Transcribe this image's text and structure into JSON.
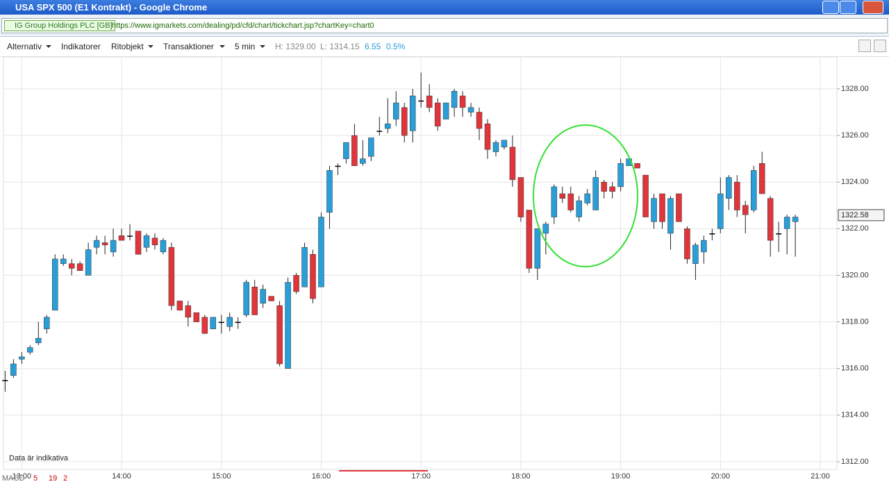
{
  "window": {
    "title": "USA SPX 500 (E1 Kontrakt) - Google Chrome"
  },
  "address_bar": {
    "site_identity": "IG Group Holdings PLC [GB]",
    "url": "https://www.igmarkets.com/dealing/pd/cfd/chart/tickchart.jsp?chartKey=chart0"
  },
  "toolbar": {
    "menus": [
      "Alternativ",
      "Indikatorer",
      "Ritobjekt",
      "Transaktioner",
      "5 min"
    ],
    "high": "H: 1329.00",
    "low": "L: 1314.15",
    "change": "6.55",
    "change_pct": "0.5%"
  },
  "footer": {
    "note": "Data är indikativa",
    "indicator": "MACD",
    "params": [
      "5",
      "19",
      "2"
    ]
  },
  "chart_data": {
    "type": "candlestick",
    "x": [
      "12:50",
      "12:55",
      "13:00",
      "13:05",
      "13:10",
      "13:15",
      "13:20",
      "13:25",
      "13:30",
      "13:35",
      "13:40",
      "13:45",
      "13:50",
      "13:55",
      "14:00",
      "14:05",
      "14:10",
      "14:15",
      "14:20",
      "14:25",
      "14:30",
      "14:35",
      "14:40",
      "14:45",
      "14:50",
      "14:55",
      "15:00",
      "15:05",
      "15:10",
      "15:15",
      "15:20",
      "15:25",
      "15:30",
      "15:35",
      "15:40",
      "15:45",
      "15:50",
      "15:55",
      "16:00",
      "16:05",
      "16:10",
      "16:15",
      "16:20",
      "16:25",
      "16:30",
      "16:35",
      "16:40",
      "16:45",
      "16:50",
      "16:55",
      "17:00",
      "17:05",
      "17:10",
      "17:15",
      "17:20",
      "17:25",
      "17:30",
      "17:35",
      "17:40",
      "17:45",
      "17:50",
      "17:55",
      "18:00",
      "18:05",
      "18:10",
      "18:15",
      "18:20",
      "18:25",
      "18:30",
      "18:35",
      "18:40",
      "18:45",
      "18:50",
      "18:55",
      "19:00",
      "19:05",
      "19:10",
      "19:15",
      "19:20",
      "19:25",
      "19:30",
      "19:35",
      "19:40",
      "19:45",
      "19:50",
      "19:55",
      "20:00",
      "20:05",
      "20:10",
      "20:15",
      "20:20",
      "20:25",
      "20:30",
      "20:35",
      "20:40",
      "20:45"
    ],
    "open": [
      1315.5,
      1315.7,
      1316.4,
      1316.7,
      1317.1,
      1317.7,
      1318.5,
      1320.5,
      1320.5,
      1320.5,
      1320.0,
      1321.2,
      1321.4,
      1321.0,
      1321.7,
      1321.7,
      1321.9,
      1321.2,
      1321.6,
      1321.0,
      1321.2,
      1318.9,
      1318.7,
      1318.4,
      1318.2,
      1317.7,
      1318.0,
      1317.8,
      1318.0,
      1318.3,
      1319.5,
      1318.8,
      1319.1,
      1318.7,
      1316.0,
      1320.0,
      1319.5,
      1320.9,
      1319.5,
      1322.7,
      1324.7,
      1325.0,
      1326.0,
      1324.8,
      1325.1,
      1326.2,
      1326.3,
      1326.7,
      1327.2,
      1326.2,
      1327.5,
      1327.7,
      1327.4,
      1326.7,
      1327.2,
      1327.7,
      1327.0,
      1327.0,
      1326.5,
      1325.3,
      1325.5,
      1325.5,
      1324.2,
      1322.8,
      1320.3,
      1321.8,
      1322.5,
      1323.5,
      1323.5,
      1322.5,
      1323.1,
      1322.8,
      1324.0,
      1323.8,
      1323.8,
      1324.7,
      1324.8,
      1324.3,
      1322.3,
      1323.5,
      1321.8,
      1323.5,
      1322.0,
      1320.5,
      1321.0,
      1321.8,
      1322.0,
      1323.3,
      1324.0,
      1323.0,
      1322.8,
      1324.8,
      1323.3,
      1321.8,
      1322.0,
      1322.3
    ],
    "high": [
      1315.9,
      1316.4,
      1316.7,
      1317.0,
      1318.0,
      1318.3,
      1320.9,
      1320.9,
      1320.7,
      1320.6,
      1321.4,
      1321.7,
      1321.7,
      1322.0,
      1322.0,
      1322.2,
      1321.9,
      1321.8,
      1321.8,
      1321.6,
      1321.4,
      1318.9,
      1318.9,
      1318.4,
      1318.3,
      1318.2,
      1318.3,
      1318.4,
      1318.2,
      1319.8,
      1319.8,
      1319.6,
      1319.1,
      1318.9,
      1319.9,
      1320.1,
      1321.4,
      1321.1,
      1322.7,
      1324.7,
      1324.8,
      1325.7,
      1326.5,
      1325.8,
      1325.9,
      1326.8,
      1327.6,
      1327.9,
      1327.4,
      1328.0,
      1328.7,
      1328.2,
      1327.6,
      1327.4,
      1328.0,
      1327.9,
      1327.4,
      1327.2,
      1326.7,
      1325.8,
      1325.8,
      1326.0,
      1324.2,
      1322.8,
      1322.0,
      1322.3,
      1323.9,
      1323.8,
      1323.8,
      1323.4,
      1323.7,
      1324.5,
      1324.1,
      1324.0,
      1325.0,
      1325.0,
      1324.8,
      1324.3,
      1323.5,
      1323.5,
      1323.4,
      1323.5,
      1322.1,
      1321.4,
      1321.7,
      1322.0,
      1324.2,
      1324.3,
      1324.3,
      1323.2,
      1324.7,
      1325.3,
      1323.4,
      1322.3,
      1322.6,
      1322.6
    ],
    "low": [
      1315.0,
      1315.6,
      1316.2,
      1316.6,
      1317.0,
      1317.5,
      1318.5,
      1320.4,
      1320.0,
      1320.2,
      1320.0,
      1320.9,
      1320.9,
      1320.8,
      1321.5,
      1321.5,
      1320.9,
      1321.0,
      1321.1,
      1320.9,
      1318.5,
      1318.5,
      1317.8,
      1318.0,
      1317.5,
      1317.7,
      1317.5,
      1317.6,
      1317.7,
      1318.2,
      1318.3,
      1318.6,
      1318.9,
      1316.1,
      1316.0,
      1319.2,
      1319.5,
      1318.8,
      1319.5,
      1322.0,
      1324.3,
      1324.8,
      1324.7,
      1324.7,
      1324.9,
      1326.0,
      1326.1,
      1326.4,
      1325.7,
      1325.7,
      1327.2,
      1327.0,
      1326.2,
      1326.7,
      1326.8,
      1326.8,
      1326.8,
      1325.8,
      1325.0,
      1325.1,
      1325.4,
      1323.8,
      1322.3,
      1320.1,
      1319.8,
      1320.9,
      1322.2,
      1323.1,
      1322.7,
      1322.3,
      1323.0,
      1322.8,
      1323.3,
      1323.3,
      1323.6,
      1324.7,
      1324.6,
      1322.5,
      1322.0,
      1322.0,
      1321.1,
      1322.3,
      1320.5,
      1319.8,
      1320.5,
      1321.5,
      1321.8,
      1322.8,
      1322.5,
      1321.8,
      1322.7,
      1323.5,
      1320.8,
      1321.0,
      1320.9,
      1320.8
    ],
    "close": [
      1315.5,
      1316.2,
      1316.5,
      1316.9,
      1317.3,
      1318.2,
      1320.7,
      1320.7,
      1320.3,
      1320.2,
      1321.1,
      1321.5,
      1321.3,
      1321.5,
      1321.5,
      1321.7,
      1320.9,
      1321.7,
      1321.3,
      1321.5,
      1318.7,
      1318.5,
      1318.2,
      1318.0,
      1317.5,
      1318.2,
      1318.0,
      1318.2,
      1318.0,
      1319.7,
      1318.3,
      1319.4,
      1318.9,
      1316.2,
      1319.7,
      1319.3,
      1321.2,
      1319.0,
      1322.5,
      1324.5,
      1324.7,
      1325.7,
      1324.7,
      1325.0,
      1325.9,
      1326.2,
      1326.5,
      1327.4,
      1326.0,
      1327.7,
      1327.5,
      1327.2,
      1326.4,
      1327.4,
      1327.9,
      1327.2,
      1327.2,
      1326.3,
      1325.4,
      1325.7,
      1325.8,
      1324.1,
      1322.5,
      1320.3,
      1322.0,
      1322.2,
      1323.8,
      1323.3,
      1322.8,
      1323.2,
      1323.5,
      1324.2,
      1323.6,
      1323.6,
      1324.8,
      1325.0,
      1324.6,
      1322.5,
      1323.3,
      1322.3,
      1323.3,
      1322.3,
      1320.7,
      1321.3,
      1321.5,
      1321.8,
      1323.5,
      1324.2,
      1322.8,
      1322.6,
      1324.5,
      1323.5,
      1321.5,
      1321.8,
      1322.5,
      1322.5
    ],
    "up_color": "#2a9ed8",
    "down_color": "#e0353b",
    "doji_color": "#000000",
    "last_value": 1322.58,
    "xlim": [
      "12:49",
      "21:10"
    ],
    "xticks": [
      "13:00",
      "14:00",
      "15:00",
      "16:00",
      "17:00",
      "18:00",
      "19:00",
      "20:00",
      "21:00"
    ],
    "ylim": [
      1311.67,
      1329.37
    ],
    "yticks": [
      {
        "value": 1312,
        "label": "1312.00"
      },
      {
        "value": 1314,
        "label": "1314.00"
      },
      {
        "value": 1316,
        "label": "1316.00"
      },
      {
        "value": 1318,
        "label": "1318.00"
      },
      {
        "value": 1320,
        "label": "1320.00"
      },
      {
        "value": 1322,
        "label": "1322.00"
      },
      {
        "value": 1324,
        "label": "1324.00"
      },
      {
        "value": 1326,
        "label": "1326.00"
      },
      {
        "value": 1328,
        "label": "1328.00"
      }
    ],
    "grid": true
  }
}
